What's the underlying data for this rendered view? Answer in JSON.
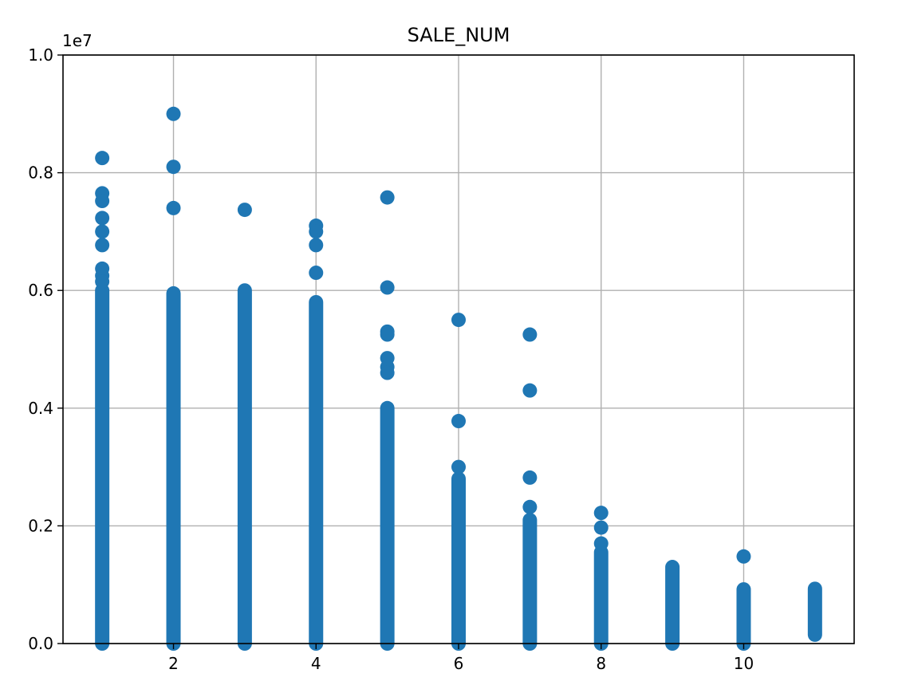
{
  "chart_data": {
    "type": "scatter",
    "title": "SALE_NUM",
    "xlabel": "",
    "ylabel": "",
    "y_offset_label": "1e7",
    "xlim": [
      0.45,
      11.55
    ],
    "ylim": [
      0.0,
      1.0
    ],
    "y_unit_multiplier": 10000000,
    "x_ticks": [
      2,
      4,
      6,
      8,
      10
    ],
    "x_tick_labels": [
      "2",
      "4",
      "6",
      "8",
      "10"
    ],
    "y_ticks": [
      0.0,
      0.2,
      0.4,
      0.6,
      0.8,
      1.0
    ],
    "y_tick_labels": [
      "0.0",
      "0.2",
      "0.4",
      "0.6",
      "0.8",
      "1.0"
    ],
    "grid": true,
    "color": "#1f77b4",
    "series": [
      {
        "points": [
          {
            "x": 1,
            "outliers": [
              0.825,
              0.765,
              0.752,
              0.723,
              0.7,
              0.677,
              0.637,
              0.625,
              0.615
            ],
            "dense_max": 0.6,
            "dense_min": 0.0
          },
          {
            "x": 2,
            "outliers": [
              0.9,
              0.81,
              0.74
            ],
            "dense_max": 0.595,
            "dense_min": 0.0
          },
          {
            "x": 3,
            "outliers": [
              0.737
            ],
            "dense_max": 0.6,
            "dense_min": 0.0
          },
          {
            "x": 4,
            "outliers": [
              0.71,
              0.7,
              0.677,
              0.63
            ],
            "dense_max": 0.58,
            "dense_min": 0.0
          },
          {
            "x": 5,
            "outliers": [
              0.758,
              0.605,
              0.53,
              0.525,
              0.485,
              0.47,
              0.46
            ],
            "dense_max": 0.4,
            "dense_min": 0.0
          },
          {
            "x": 6,
            "outliers": [
              0.55,
              0.378,
              0.3
            ],
            "dense_max": 0.28,
            "dense_min": 0.0
          },
          {
            "x": 7,
            "outliers": [
              0.525,
              0.43,
              0.282,
              0.232
            ],
            "dense_max": 0.21,
            "dense_min": 0.0
          },
          {
            "x": 8,
            "outliers": [
              0.222,
              0.197,
              0.17
            ],
            "dense_max": 0.155,
            "dense_min": 0.0
          },
          {
            "x": 9,
            "outliers": [],
            "dense_max": 0.13,
            "dense_min": 0.0
          },
          {
            "x": 10,
            "outliers": [
              0.148
            ],
            "dense_max": 0.092,
            "dense_min": 0.0
          },
          {
            "x": 11,
            "outliers": [],
            "dense_max": 0.093,
            "dense_min": 0.015
          }
        ]
      }
    ]
  }
}
